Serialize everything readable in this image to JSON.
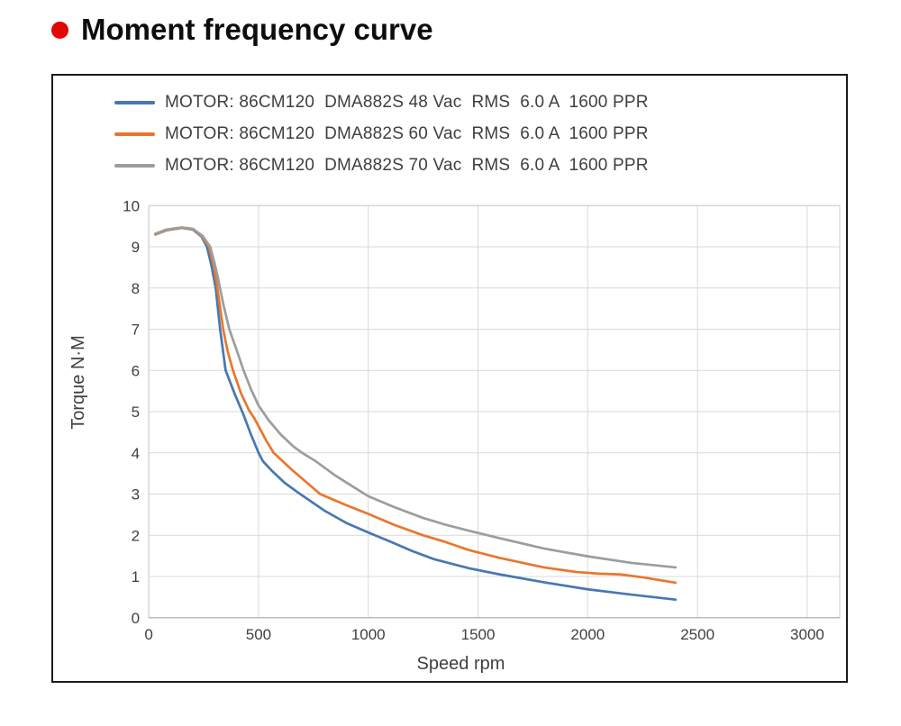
{
  "page": {
    "title": "Moment frequency curve",
    "accent_color": "#e10600"
  },
  "figure": {
    "legend": [
      {
        "label": "MOTOR: 86CM120  DMA882S 48 Vac  RMS  6.0 A  1600 PPR",
        "color": "#4678b2"
      },
      {
        "label": "MOTOR: 86CM120  DMA882S 60 Vac  RMS  6.0 A  1600 PPR",
        "color": "#e8772e"
      },
      {
        "label": "MOTOR: 86CM120  DMA882S 70 Vac  RMS  6.0 A  1600 PPR",
        "color": "#9d9d9d"
      }
    ]
  },
  "chart_data": {
    "type": "line",
    "title": "",
    "xlabel": "Speed rpm",
    "ylabel": "Torque N·M",
    "xlim": [
      0,
      3000
    ],
    "ylim": [
      0,
      10
    ],
    "x_ticks": [
      0,
      500,
      1000,
      1500,
      2000,
      2500,
      3000
    ],
    "y_ticks": [
      0,
      1,
      2,
      3,
      4,
      5,
      6,
      7,
      8,
      9,
      10
    ],
    "grid": true,
    "legend_position": "top-left",
    "grid_color": "#d9d9d9",
    "border_color": "#cdcdcd",
    "axis_line_color": "#b0b0b0",
    "tick_label_color": "#404040",
    "series": [
      {
        "name": "MOTOR: 86CM120  DMA882S 48 Vac  RMS  6.0 A  1600 PPR",
        "color": "#4678b2",
        "points": [
          [
            30,
            9.3
          ],
          [
            80,
            9.4
          ],
          [
            150,
            9.46
          ],
          [
            200,
            9.42
          ],
          [
            240,
            9.25
          ],
          [
            265,
            9.0
          ],
          [
            285,
            8.55
          ],
          [
            305,
            8.0
          ],
          [
            325,
            7.0
          ],
          [
            350,
            6.0
          ],
          [
            390,
            5.45
          ],
          [
            430,
            4.95
          ],
          [
            465,
            4.45
          ],
          [
            500,
            4.0
          ],
          [
            520,
            3.8
          ],
          [
            560,
            3.57
          ],
          [
            620,
            3.27
          ],
          [
            690,
            3.0
          ],
          [
            800,
            2.6
          ],
          [
            900,
            2.3
          ],
          [
            1000,
            2.07
          ],
          [
            1100,
            1.85
          ],
          [
            1200,
            1.62
          ],
          [
            1300,
            1.42
          ],
          [
            1460,
            1.2
          ],
          [
            1600,
            1.05
          ],
          [
            1800,
            0.86
          ],
          [
            2000,
            0.69
          ],
          [
            2200,
            0.56
          ],
          [
            2400,
            0.44
          ]
        ]
      },
      {
        "name": "MOTOR: 86CM120  DMA882S 60 Vac  RMS  6.0 A  1600 PPR",
        "color": "#e8772e",
        "points": [
          [
            30,
            9.3
          ],
          [
            80,
            9.41
          ],
          [
            150,
            9.46
          ],
          [
            200,
            9.43
          ],
          [
            240,
            9.27
          ],
          [
            275,
            9.0
          ],
          [
            295,
            8.55
          ],
          [
            310,
            8.1
          ],
          [
            339,
            7.0
          ],
          [
            360,
            6.45
          ],
          [
            384,
            6.0
          ],
          [
            420,
            5.45
          ],
          [
            455,
            5.05
          ],
          [
            480,
            4.85
          ],
          [
            500,
            4.65
          ],
          [
            535,
            4.3
          ],
          [
            569,
            4.0
          ],
          [
            650,
            3.6
          ],
          [
            720,
            3.28
          ],
          [
            781,
            3.0
          ],
          [
            900,
            2.73
          ],
          [
            1000,
            2.52
          ],
          [
            1120,
            2.25
          ],
          [
            1250,
            2.0
          ],
          [
            1350,
            1.84
          ],
          [
            1460,
            1.64
          ],
          [
            1600,
            1.45
          ],
          [
            1800,
            1.22
          ],
          [
            1950,
            1.11
          ],
          [
            2050,
            1.07
          ],
          [
            2150,
            1.05
          ],
          [
            2250,
            0.98
          ],
          [
            2400,
            0.85
          ]
        ]
      },
      {
        "name": "MOTOR: 86CM120  DMA882S 70 Vac  RMS  6.0 A  1600 PPR",
        "color": "#9d9d9d",
        "points": [
          [
            30,
            9.32
          ],
          [
            80,
            9.42
          ],
          [
            150,
            9.47
          ],
          [
            200,
            9.44
          ],
          [
            245,
            9.27
          ],
          [
            280,
            9.0
          ],
          [
            300,
            8.6
          ],
          [
            315,
            8.25
          ],
          [
            340,
            7.6
          ],
          [
            367,
            7.0
          ],
          [
            400,
            6.5
          ],
          [
            432,
            6.0
          ],
          [
            465,
            5.55
          ],
          [
            500,
            5.15
          ],
          [
            545,
            4.8
          ],
          [
            600,
            4.45
          ],
          [
            660,
            4.15
          ],
          [
            699,
            4.0
          ],
          [
            760,
            3.8
          ],
          [
            850,
            3.45
          ],
          [
            1000,
            2.95
          ],
          [
            1120,
            2.68
          ],
          [
            1250,
            2.42
          ],
          [
            1350,
            2.26
          ],
          [
            1460,
            2.11
          ],
          [
            1600,
            1.93
          ],
          [
            1800,
            1.68
          ],
          [
            2000,
            1.49
          ],
          [
            2200,
            1.33
          ],
          [
            2400,
            1.22
          ]
        ]
      }
    ]
  }
}
